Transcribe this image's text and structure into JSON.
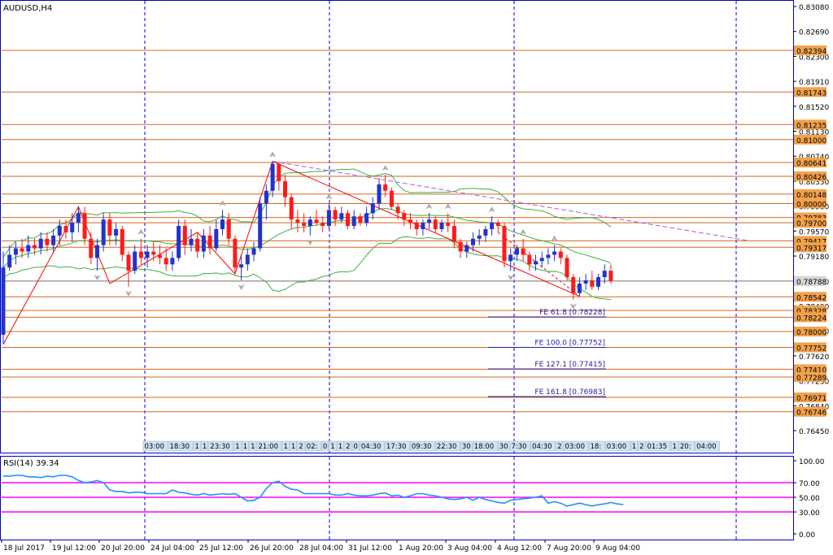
{
  "main_title": "AUDUSD,H4",
  "rsi_title": "RSI(14) 39.34",
  "colors": {
    "bull": "#2233cc",
    "bear": "#ff1a1a",
    "grid": "#0000cc",
    "level_line": "#d2691e",
    "level_label_bg": "#f2a24a",
    "bands": "#3cb043",
    "ma_mid": "#3cb043",
    "fe": "#2222aa",
    "trend_red": "#ff0000",
    "trend_purple": "#b05cd6",
    "rsi_line": "#1e90ff",
    "rsi_levels": "#ff00ff",
    "axis_text": "#000000",
    "fractal": "#aaaaaa",
    "mark_label_bg": "#cde3f7"
  },
  "chart_data": [
    {
      "type": "candlestick",
      "symbol": "AUDUSD",
      "timeframe": "H4",
      "ylim": [
        0.7645,
        0.8308
      ],
      "price_scale_ticks": [
        "0.83080",
        "0.82690",
        "0.82300",
        "0.81910",
        "0.81520",
        "0.81130",
        "0.80740",
        "0.80350",
        "0.79960",
        "0.79570",
        "0.79180",
        "0.78790",
        "0.78400",
        "0.78010",
        "0.77620",
        "0.77230",
        "0.76840",
        "0.76450"
      ],
      "date_labels": [
        "18 Jul 2017",
        "19 Jul 12:00",
        "20 Jul 20:00",
        "24 Jul 04:00",
        "25 Jul 12:00",
        "26 Jul 20:00",
        "28 Jul 04:00",
        "31 Jul 12:00",
        "1 Aug 20:00",
        "3 Aug 04:00",
        "4 Aug 12:00",
        "7 Aug 20:00",
        "9 Aug 04:00"
      ],
      "candles": [
        {
          "o": 0.7795,
          "h": 0.7925,
          "l": 0.778,
          "c": 0.79
        },
        {
          "o": 0.79,
          "h": 0.7935,
          "l": 0.7895,
          "c": 0.792
        },
        {
          "o": 0.792,
          "h": 0.794,
          "l": 0.7905,
          "c": 0.793
        },
        {
          "o": 0.793,
          "h": 0.7945,
          "l": 0.7915,
          "c": 0.7925
        },
        {
          "o": 0.7925,
          "h": 0.795,
          "l": 0.7915,
          "c": 0.7935
        },
        {
          "o": 0.7935,
          "h": 0.7945,
          "l": 0.792,
          "c": 0.793
        },
        {
          "o": 0.793,
          "h": 0.7955,
          "l": 0.792,
          "c": 0.7945
        },
        {
          "o": 0.7945,
          "h": 0.7955,
          "l": 0.7925,
          "c": 0.7935
        },
        {
          "o": 0.7935,
          "h": 0.796,
          "l": 0.7925,
          "c": 0.795
        },
        {
          "o": 0.795,
          "h": 0.7975,
          "l": 0.7935,
          "c": 0.7965
        },
        {
          "o": 0.7965,
          "h": 0.7975,
          "l": 0.7945,
          "c": 0.7955
        },
        {
          "o": 0.7955,
          "h": 0.7985,
          "l": 0.794,
          "c": 0.797
        },
        {
          "o": 0.797,
          "h": 0.7995,
          "l": 0.7955,
          "c": 0.7985
        },
        {
          "o": 0.7985,
          "h": 0.7995,
          "l": 0.7935,
          "c": 0.7945
        },
        {
          "o": 0.7945,
          "h": 0.7955,
          "l": 0.7905,
          "c": 0.7915
        },
        {
          "o": 0.7915,
          "h": 0.7945,
          "l": 0.7895,
          "c": 0.7935
        },
        {
          "o": 0.7935,
          "h": 0.7985,
          "l": 0.7925,
          "c": 0.7975
        },
        {
          "o": 0.7975,
          "h": 0.7985,
          "l": 0.7935,
          "c": 0.795
        },
        {
          "o": 0.795,
          "h": 0.797,
          "l": 0.7935,
          "c": 0.796
        },
        {
          "o": 0.796,
          "h": 0.7965,
          "l": 0.791,
          "c": 0.792
        },
        {
          "o": 0.792,
          "h": 0.7925,
          "l": 0.787,
          "c": 0.7895
        },
        {
          "o": 0.7895,
          "h": 0.7935,
          "l": 0.789,
          "c": 0.7925
        },
        {
          "o": 0.7925,
          "h": 0.7945,
          "l": 0.7905,
          "c": 0.7915
        },
        {
          "o": 0.7915,
          "h": 0.7935,
          "l": 0.79,
          "c": 0.7925
        },
        {
          "o": 0.7925,
          "h": 0.794,
          "l": 0.791,
          "c": 0.792
        },
        {
          "o": 0.792,
          "h": 0.7935,
          "l": 0.7905,
          "c": 0.7915
        },
        {
          "o": 0.7915,
          "h": 0.793,
          "l": 0.7895,
          "c": 0.7905
        },
        {
          "o": 0.7905,
          "h": 0.7925,
          "l": 0.7895,
          "c": 0.7915
        },
        {
          "o": 0.7915,
          "h": 0.7975,
          "l": 0.791,
          "c": 0.7965
        },
        {
          "o": 0.7965,
          "h": 0.7975,
          "l": 0.792,
          "c": 0.7935
        },
        {
          "o": 0.7935,
          "h": 0.796,
          "l": 0.7925,
          "c": 0.7945
        },
        {
          "o": 0.7945,
          "h": 0.7955,
          "l": 0.7915,
          "c": 0.7925
        },
        {
          "o": 0.7925,
          "h": 0.796,
          "l": 0.7915,
          "c": 0.795
        },
        {
          "o": 0.795,
          "h": 0.7965,
          "l": 0.792,
          "c": 0.793
        },
        {
          "o": 0.793,
          "h": 0.7975,
          "l": 0.7925,
          "c": 0.796
        },
        {
          "o": 0.796,
          "h": 0.799,
          "l": 0.795,
          "c": 0.7975
        },
        {
          "o": 0.7975,
          "h": 0.7985,
          "l": 0.7935,
          "c": 0.7945
        },
        {
          "o": 0.7945,
          "h": 0.795,
          "l": 0.789,
          "c": 0.79
        },
        {
          "o": 0.79,
          "h": 0.792,
          "l": 0.788,
          "c": 0.7905
        },
        {
          "o": 0.7905,
          "h": 0.793,
          "l": 0.7895,
          "c": 0.792
        },
        {
          "o": 0.792,
          "h": 0.794,
          "l": 0.791,
          "c": 0.793
        },
        {
          "o": 0.793,
          "h": 0.801,
          "l": 0.7925,
          "c": 0.8
        },
        {
          "o": 0.8,
          "h": 0.803,
          "l": 0.7975,
          "c": 0.802
        },
        {
          "o": 0.802,
          "h": 0.8066,
          "l": 0.801,
          "c": 0.8062
        },
        {
          "o": 0.8062,
          "h": 0.8064,
          "l": 0.802,
          "c": 0.8035
        },
        {
          "o": 0.8035,
          "h": 0.8045,
          "l": 0.7995,
          "c": 0.801
        },
        {
          "o": 0.801,
          "h": 0.8015,
          "l": 0.796,
          "c": 0.7975
        },
        {
          "o": 0.7975,
          "h": 0.799,
          "l": 0.7955,
          "c": 0.797
        },
        {
          "o": 0.797,
          "h": 0.7985,
          "l": 0.7955,
          "c": 0.7965
        },
        {
          "o": 0.7965,
          "h": 0.798,
          "l": 0.795,
          "c": 0.7975
        },
        {
          "o": 0.7975,
          "h": 0.799,
          "l": 0.7965,
          "c": 0.797
        },
        {
          "o": 0.797,
          "h": 0.798,
          "l": 0.7955,
          "c": 0.7965
        },
        {
          "o": 0.7965,
          "h": 0.8,
          "l": 0.796,
          "c": 0.799
        },
        {
          "o": 0.799,
          "h": 0.7995,
          "l": 0.7965,
          "c": 0.7975
        },
        {
          "o": 0.7975,
          "h": 0.7995,
          "l": 0.797,
          "c": 0.7985
        },
        {
          "o": 0.7985,
          "h": 0.799,
          "l": 0.796,
          "c": 0.7965
        },
        {
          "o": 0.7965,
          "h": 0.799,
          "l": 0.796,
          "c": 0.798
        },
        {
          "o": 0.798,
          "h": 0.7985,
          "l": 0.7965,
          "c": 0.797
        },
        {
          "o": 0.797,
          "h": 0.7995,
          "l": 0.7965,
          "c": 0.7985
        },
        {
          "o": 0.7985,
          "h": 0.801,
          "l": 0.7975,
          "c": 0.8
        },
        {
          "o": 0.8,
          "h": 0.804,
          "l": 0.799,
          "c": 0.803
        },
        {
          "o": 0.803,
          "h": 0.8045,
          "l": 0.801,
          "c": 0.802
        },
        {
          "o": 0.802,
          "h": 0.8025,
          "l": 0.799,
          "c": 0.7995
        },
        {
          "o": 0.7995,
          "h": 0.8,
          "l": 0.7975,
          "c": 0.7985
        },
        {
          "o": 0.7985,
          "h": 0.799,
          "l": 0.7965,
          "c": 0.7975
        },
        {
          "o": 0.7975,
          "h": 0.7985,
          "l": 0.796,
          "c": 0.797
        },
        {
          "o": 0.797,
          "h": 0.7975,
          "l": 0.795,
          "c": 0.796
        },
        {
          "o": 0.796,
          "h": 0.7975,
          "l": 0.795,
          "c": 0.797
        },
        {
          "o": 0.797,
          "h": 0.7985,
          "l": 0.796,
          "c": 0.7975
        },
        {
          "o": 0.7975,
          "h": 0.798,
          "l": 0.7955,
          "c": 0.796
        },
        {
          "o": 0.796,
          "h": 0.7975,
          "l": 0.7955,
          "c": 0.797
        },
        {
          "o": 0.797,
          "h": 0.7985,
          "l": 0.7955,
          "c": 0.7965
        },
        {
          "o": 0.7965,
          "h": 0.7975,
          "l": 0.793,
          "c": 0.794
        },
        {
          "o": 0.794,
          "h": 0.7945,
          "l": 0.7915,
          "c": 0.7925
        },
        {
          "o": 0.7925,
          "h": 0.794,
          "l": 0.7915,
          "c": 0.7935
        },
        {
          "o": 0.7935,
          "h": 0.7955,
          "l": 0.7925,
          "c": 0.7945
        },
        {
          "o": 0.7945,
          "h": 0.796,
          "l": 0.7935,
          "c": 0.795
        },
        {
          "o": 0.795,
          "h": 0.7965,
          "l": 0.794,
          "c": 0.796
        },
        {
          "o": 0.796,
          "h": 0.798,
          "l": 0.795,
          "c": 0.797
        },
        {
          "o": 0.797,
          "h": 0.7975,
          "l": 0.7955,
          "c": 0.7965
        },
        {
          "o": 0.7965,
          "h": 0.797,
          "l": 0.79,
          "c": 0.791
        },
        {
          "o": 0.791,
          "h": 0.793,
          "l": 0.7895,
          "c": 0.792
        },
        {
          "o": 0.792,
          "h": 0.7935,
          "l": 0.791,
          "c": 0.793
        },
        {
          "o": 0.793,
          "h": 0.7945,
          "l": 0.791,
          "c": 0.792
        },
        {
          "o": 0.792,
          "h": 0.7925,
          "l": 0.7895,
          "c": 0.7905
        },
        {
          "o": 0.7905,
          "h": 0.792,
          "l": 0.7895,
          "c": 0.791
        },
        {
          "o": 0.791,
          "h": 0.7925,
          "l": 0.79,
          "c": 0.7915
        },
        {
          "o": 0.7915,
          "h": 0.793,
          "l": 0.7905,
          "c": 0.792
        },
        {
          "o": 0.792,
          "h": 0.7935,
          "l": 0.791,
          "c": 0.7925
        },
        {
          "o": 0.7925,
          "h": 0.793,
          "l": 0.7905,
          "c": 0.7915
        },
        {
          "o": 0.7915,
          "h": 0.792,
          "l": 0.788,
          "c": 0.7885
        },
        {
          "o": 0.7885,
          "h": 0.789,
          "l": 0.785,
          "c": 0.786
        },
        {
          "o": 0.786,
          "h": 0.7885,
          "l": 0.7855,
          "c": 0.7875
        },
        {
          "o": 0.7875,
          "h": 0.789,
          "l": 0.7865,
          "c": 0.788
        },
        {
          "o": 0.788,
          "h": 0.7895,
          "l": 0.7865,
          "c": 0.787
        },
        {
          "o": 0.787,
          "h": 0.789,
          "l": 0.7865,
          "c": 0.7885
        },
        {
          "o": 0.7885,
          "h": 0.7905,
          "l": 0.7875,
          "c": 0.7895
        },
        {
          "o": 0.7895,
          "h": 0.7905,
          "l": 0.7875,
          "c": 0.7879
        }
      ],
      "horizontal_levels": [
        "0.82394",
        "0.81743",
        "0.81235",
        "0.81000",
        "0.80641",
        "0.80426",
        "0.80148",
        "0.80000",
        "0.79783",
        "0.79700",
        "0.79417",
        "0.79317",
        "0.78788",
        "0.78542",
        "0.78328",
        "0.78224",
        "0.78000",
        "0.77752",
        "0.77410",
        "0.77289",
        "0.76971",
        "0.76746"
      ],
      "current_price": "0.78788",
      "fibonacci_expansion": [
        {
          "label": "FE 61.8 [0.78228]",
          "value": 0.78228
        },
        {
          "label": "FE 100.0 [0.77752]",
          "value": 0.77752
        },
        {
          "label": "FE 127.1 [0.77415]",
          "value": 0.77415
        },
        {
          "label": "FE 161.8 [0.76983]",
          "value": 0.76983
        }
      ],
      "session_markers": [
        "03:00",
        "18:30",
        "1",
        "1",
        "23:30",
        "1",
        "1",
        "1",
        "21:00",
        "1",
        "1",
        "2",
        "02:",
        "0",
        "1",
        "1",
        "2",
        "0",
        "04:30",
        "17:30",
        "09:30",
        "22:30",
        "30",
        "18:00",
        "30",
        "7:30",
        "04:30",
        "2",
        "03:00",
        "18:",
        "03:00",
        "1",
        "2",
        "01:35",
        "1",
        "20:",
        "04:00",
        "17:0",
        "02:30",
        "22:30"
      ]
    },
    {
      "type": "line",
      "name": "RSI(14) 39.34",
      "ylim": [
        0,
        100
      ],
      "ticks": [
        "100.00",
        "70.00",
        "50.00",
        "30.00",
        "0.00"
      ],
      "levels": [
        70,
        50,
        30
      ],
      "values": [
        79,
        79,
        80,
        80,
        78,
        78,
        77,
        79,
        78,
        80,
        80,
        78,
        73,
        70,
        71,
        73,
        70,
        60,
        58,
        58,
        56,
        57,
        57,
        55,
        55,
        55,
        55,
        60,
        57,
        56,
        54,
        53,
        55,
        53,
        54,
        55,
        54,
        55,
        50,
        45,
        46,
        50,
        62,
        70,
        72,
        65,
        61,
        60,
        55,
        55,
        55,
        55,
        55,
        53,
        53,
        55,
        53,
        52,
        52,
        53,
        55,
        56,
        52,
        53,
        50,
        52,
        55,
        55,
        53,
        52,
        50,
        48,
        47,
        48,
        50,
        46,
        50,
        47,
        45,
        43,
        42,
        46,
        47,
        48,
        49,
        50,
        52,
        42,
        44,
        42,
        38,
        40,
        42,
        40,
        38,
        40,
        41,
        43,
        41,
        40
      ]
    }
  ]
}
